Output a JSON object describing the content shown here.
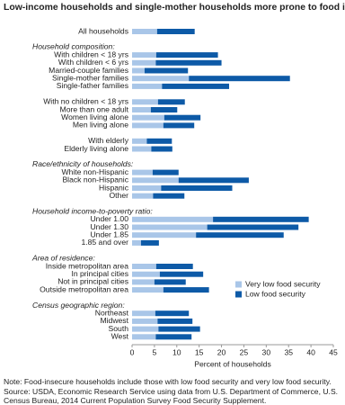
{
  "chart_data": {
    "type": "stacked-bar-horizontal",
    "title": "Low-income households and single-mother households more prone to food insecurity",
    "xlabel": "Percent of households",
    "xlim": [
      0,
      45
    ],
    "xticks": [
      0,
      5,
      10,
      15,
      20,
      25,
      30,
      35,
      40,
      45
    ],
    "legend": [
      {
        "name": "Very low food security",
        "color": "#a9c6e8"
      },
      {
        "name": "Low food security",
        "color": "#0d5aa7"
      }
    ],
    "sections": [
      {
        "categories": [
          "All households"
        ],
        "series": [
          {
            "values": [
              5.6
            ]
          },
          {
            "values": [
              8.4
            ]
          }
        ]
      },
      {
        "title": "Household composition:",
        "categories": [
          "With children < 18 yrs",
          "With children < 6 yrs",
          "Married-couple families",
          "Single-mother families",
          "Single-father families"
        ],
        "series": [
          {
            "values": [
              5.4,
              5.3,
              2.8,
              12.7,
              6.7
            ]
          },
          {
            "values": [
              13.8,
              14.7,
              9.7,
              22.6,
              15.0
            ]
          }
        ]
      },
      {
        "categories": [
          "With no children < 18 yrs",
          "More than one adult",
          "Women living alone",
          "Men living alone"
        ],
        "series": [
          {
            "values": [
              5.8,
              4.2,
              7.2,
              7.0
            ]
          },
          {
            "values": [
              6.0,
              5.9,
              8.1,
              6.9
            ]
          }
        ]
      },
      {
        "categories": [
          "With elderly",
          "Elderly living alone"
        ],
        "series": [
          {
            "values": [
              3.3,
              4.3
            ]
          },
          {
            "values": [
              5.6,
              4.7
            ]
          }
        ]
      },
      {
        "title": "Race/ethnicity of households:",
        "categories": [
          "White non-Hispanic",
          "Black non-Hispanic",
          "Hispanic",
          "Other"
        ],
        "series": [
          {
            "values": [
              4.6,
              10.4,
              6.5,
              4.7
            ]
          },
          {
            "values": [
              5.8,
              15.7,
              15.9,
              7.0
            ]
          }
        ]
      },
      {
        "title": "Household income-to-poverty ratio:",
        "categories": [
          "Under 1.00",
          "Under 1.30",
          "Under 1.85",
          "1.85 and over"
        ],
        "series": [
          {
            "values": [
              18.1,
              16.8,
              14.3,
              2.0
            ]
          },
          {
            "values": [
              21.4,
              20.4,
              19.6,
              4.0
            ]
          }
        ]
      },
      {
        "title": "Area of residence:",
        "categories": [
          "Inside metropolitan area",
          "In principal cities",
          "Not in principal cities",
          "Outside metropolitan area"
        ],
        "series": [
          {
            "values": [
              5.4,
              6.2,
              5.0,
              7.0
            ]
          },
          {
            "values": [
              8.2,
              9.7,
              7.0,
              10.2
            ]
          }
        ]
      },
      {
        "title": "Census geographic region:",
        "categories": [
          "Northeast",
          "Midwest",
          "South",
          "West"
        ],
        "series": [
          {
            "values": [
              5.2,
              5.7,
              5.9,
              5.3
            ]
          },
          {
            "values": [
              7.5,
              7.8,
              9.3,
              8.0
            ]
          }
        ]
      }
    ],
    "note": "Note: Food-insecure households include those with low food security and very low food security.",
    "source": "Source: USDA, Economic Research Service using data from U.S. Department of Commerce, U.S. Census Bureau, 2014 Current Population Survey Food Security Supplement."
  }
}
